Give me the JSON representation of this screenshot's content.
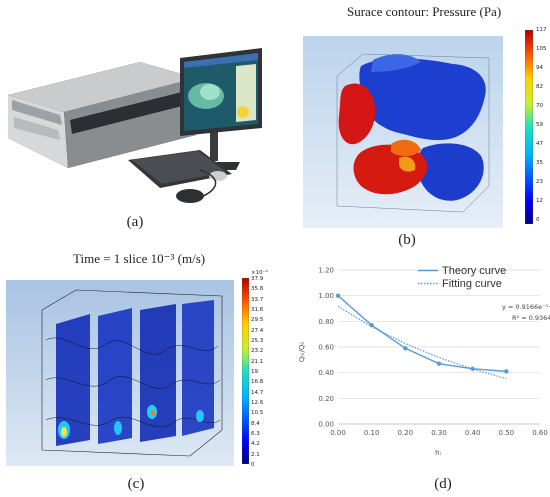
{
  "panels": {
    "a": {
      "caption": "(a)"
    },
    "b": {
      "caption": "(b)",
      "title": "Surace contour: Pressure (Pa)",
      "colorbar_ticks": [
        "117",
        "105",
        "94",
        "82",
        "70",
        "59",
        "47",
        "35",
        "23",
        "12",
        "0"
      ]
    },
    "c": {
      "caption": "(c)",
      "title": "Time = 1 slice 10⁻³ (m/s)",
      "colorbar_exp": "×10⁻³",
      "colorbar_ticks": [
        "37.9",
        "35.8",
        "33.7",
        "31.6",
        "29.5",
        "27.4",
        "25.3",
        "23.2",
        "21.1",
        "19",
        "16.8",
        "14.7",
        "12.6",
        "10.5",
        "8.4",
        "6.3",
        "4.2",
        "2.1",
        "0"
      ]
    },
    "d": {
      "caption": "(d)"
    }
  },
  "chart_data": {
    "type": "line",
    "title": "",
    "xlabel": "hᵢ",
    "ylabel": "Qₕᵢ/Q₀",
    "xlim": [
      0.0,
      0.6
    ],
    "ylim": [
      0.0,
      1.2
    ],
    "x_ticks": [
      "0.00",
      "0.10",
      "0.20",
      "0.30",
      "0.40",
      "0.50",
      "0.60"
    ],
    "y_ticks": [
      "0.00",
      "0.20",
      "0.40",
      "0.60",
      "0.80",
      "1.00",
      "1.20"
    ],
    "grid": "horizontal",
    "legend_position": "top-right",
    "series": [
      {
        "name": "Theory curve",
        "style": "solid",
        "color": "#5b9bd5",
        "x": [
          0.0,
          0.1,
          0.2,
          0.3,
          0.4,
          0.5
        ],
        "y": [
          1.0,
          0.77,
          0.59,
          0.47,
          0.43,
          0.41
        ]
      },
      {
        "name": "Fitting curve",
        "style": "dotted",
        "color": "#5b9bd5",
        "x": [
          0.0,
          0.1,
          0.2,
          0.3,
          0.4,
          0.5
        ],
        "y": [
          0.917,
          0.758,
          0.627,
          0.518,
          0.428,
          0.354
        ]
      }
    ],
    "annotations": [
      "y = 0.9166e⁻¹·⁹³⁶ˣ",
      "R² = 0.9364"
    ]
  }
}
